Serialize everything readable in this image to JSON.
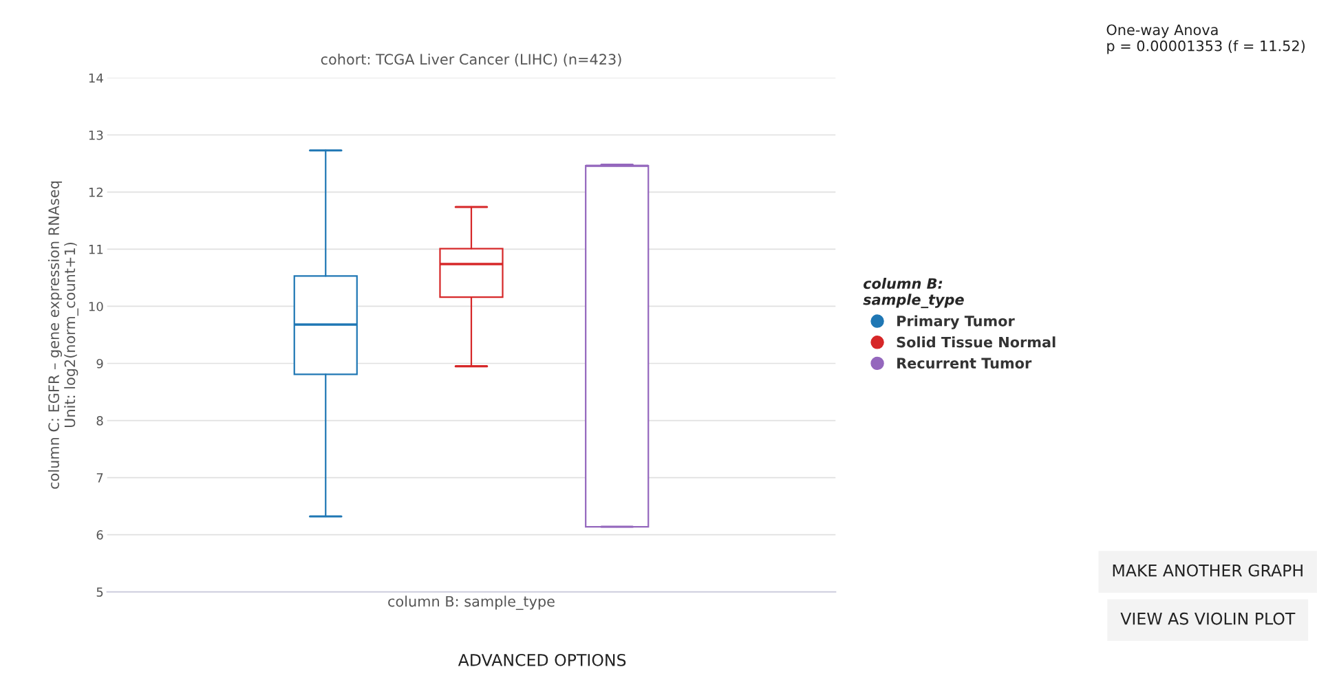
{
  "chart_data": {
    "type": "box",
    "title": "cohort: TCGA Liver Cancer (LIHC) (n=423)",
    "xlabel": "column B: sample_type",
    "ylabel": "column C: EGFR – gene expression RNAseq\nUnit: log2(norm_count+1)",
    "legend_title": "column B:\nsample_type",
    "categories": [
      null
    ],
    "series": [
      {
        "name": "Primary Tumor",
        "color": "#1f77b4",
        "boxes": [
          {
            "low": 6.32,
            "q1": 8.81,
            "median": 9.68,
            "q3": 10.53,
            "high": 12.73
          }
        ]
      },
      {
        "name": "Solid Tissue Normal",
        "color": "#d62728",
        "boxes": [
          {
            "low": 8.95,
            "q1": 10.16,
            "median": 10.74,
            "q3": 11.01,
            "high": 11.74
          }
        ]
      },
      {
        "name": "Recurrent Tumor",
        "color": "#9467bd",
        "boxes": [
          {
            "low": 6.14,
            "q1": 6.14,
            "median": 12.46,
            "q3": 12.46,
            "high": 12.48
          }
        ]
      }
    ],
    "ylim": [
      5,
      14
    ],
    "yticks": [
      5,
      6,
      7,
      8,
      9,
      10,
      11,
      12,
      13,
      14
    ],
    "grid": "y",
    "legend": "right",
    "tick_labels": "y",
    "annotations": [
      "One-way Anova\np = 0.00001353 (f = 11.52)",
      "MAKE ANOTHER GRAPH",
      "VIEW AS VIOLIN PLOT",
      "ADVANCED OPTIONS"
    ]
  }
}
